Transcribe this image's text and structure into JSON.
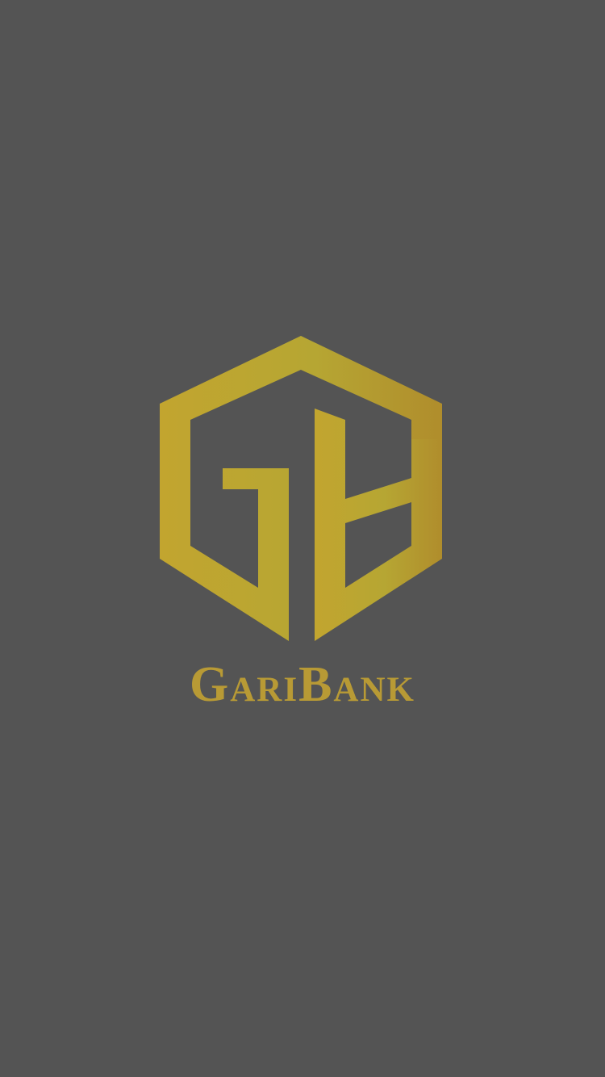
{
  "splash": {
    "brand_name": "GariBank",
    "logo_icon": "garibank-logo-icon",
    "background_color": "#545454",
    "brand_color": "#b89a35"
  }
}
